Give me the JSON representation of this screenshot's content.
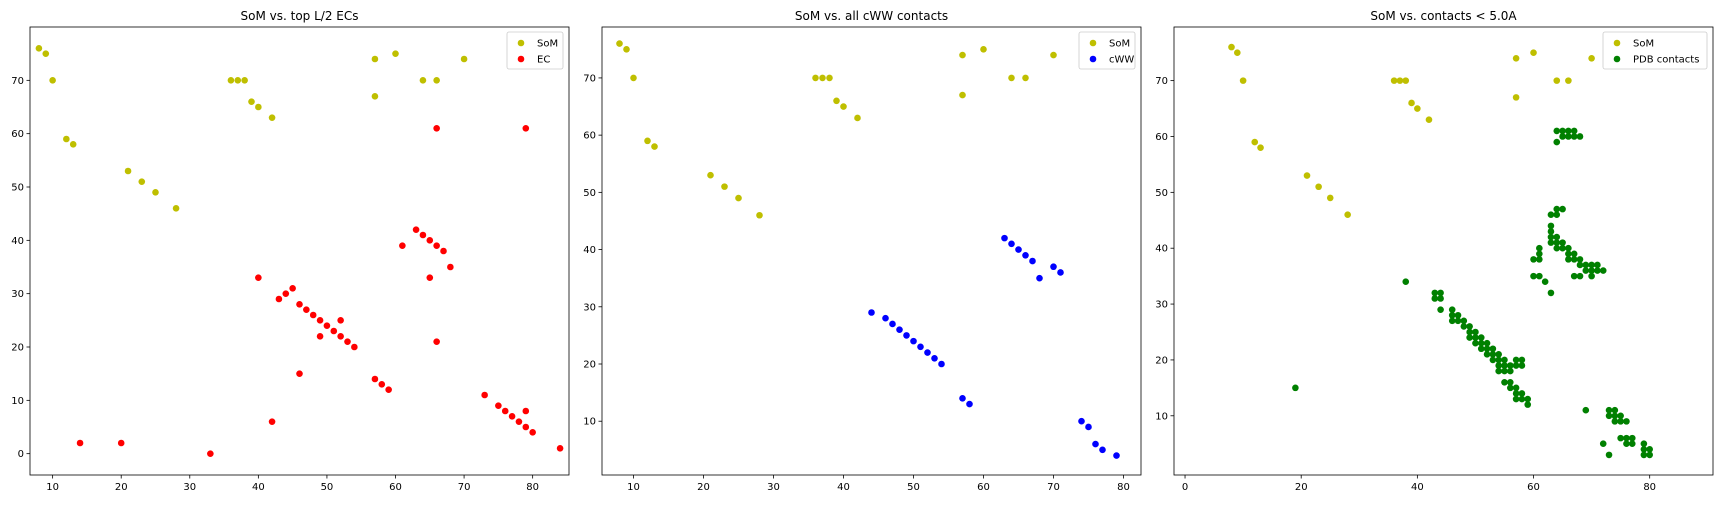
{
  "chart_data": [
    {
      "type": "scatter",
      "title": "SoM vs. top L/2 ECs",
      "xlabel": "",
      "ylabel": "",
      "xlim": [
        6.7,
        85.3
      ],
      "ylim": [
        -4,
        80
      ],
      "xticks": [
        10,
        20,
        30,
        40,
        50,
        60,
        70,
        80
      ],
      "yticks": [
        0,
        10,
        20,
        30,
        40,
        50,
        60,
        70
      ],
      "legend_position": "top-right",
      "grid": false,
      "series": [
        {
          "name": "SoM",
          "color": "#bfbf00",
          "points": [
            [
              8,
              76
            ],
            [
              9,
              75
            ],
            [
              10,
              70
            ],
            [
              12,
              59
            ],
            [
              13,
              58
            ],
            [
              21,
              53
            ],
            [
              23,
              51
            ],
            [
              25,
              49
            ],
            [
              28,
              46
            ],
            [
              36,
              70
            ],
            [
              37,
              70
            ],
            [
              38,
              70
            ],
            [
              39,
              66
            ],
            [
              40,
              65
            ],
            [
              42,
              63
            ],
            [
              57,
              74
            ],
            [
              57,
              67
            ],
            [
              60,
              75
            ],
            [
              64,
              70
            ],
            [
              66,
              70
            ],
            [
              70,
              74
            ]
          ]
        },
        {
          "name": "EC",
          "color": "#ff0000",
          "points": [
            [
              14,
              2
            ],
            [
              20,
              2
            ],
            [
              33,
              0
            ],
            [
              40,
              33
            ],
            [
              42,
              6
            ],
            [
              43,
              29
            ],
            [
              44,
              30
            ],
            [
              45,
              31
            ],
            [
              46,
              28
            ],
            [
              46,
              15
            ],
            [
              47,
              27
            ],
            [
              48,
              26
            ],
            [
              49,
              25
            ],
            [
              49,
              22
            ],
            [
              50,
              24
            ],
            [
              51,
              23
            ],
            [
              52,
              22
            ],
            [
              52,
              25
            ],
            [
              53,
              21
            ],
            [
              54,
              20
            ],
            [
              57,
              14
            ],
            [
              58,
              13
            ],
            [
              59,
              12
            ],
            [
              61,
              39
            ],
            [
              63,
              42
            ],
            [
              64,
              41
            ],
            [
              65,
              40
            ],
            [
              65,
              33
            ],
            [
              66,
              39
            ],
            [
              66,
              61
            ],
            [
              66,
              21
            ],
            [
              67,
              38
            ],
            [
              68,
              35
            ],
            [
              73,
              11
            ],
            [
              75,
              9
            ],
            [
              76,
              8
            ],
            [
              77,
              7
            ],
            [
              78,
              6
            ],
            [
              79,
              5
            ],
            [
              79,
              8
            ],
            [
              79,
              61
            ],
            [
              80,
              4
            ],
            [
              84,
              1
            ]
          ]
        }
      ]
    },
    {
      "type": "scatter",
      "title": "SoM vs. all cWW contacts",
      "xlabel": "",
      "ylabel": "",
      "xlim": [
        5.5,
        82.5
      ],
      "ylim": [
        0.6,
        78.9
      ],
      "xticks": [
        10,
        20,
        30,
        40,
        50,
        60,
        70,
        80
      ],
      "yticks": [
        10,
        20,
        30,
        40,
        50,
        60,
        70
      ],
      "legend_position": "top-right",
      "grid": false,
      "series": [
        {
          "name": "SoM",
          "color": "#bfbf00",
          "points": [
            [
              8,
              76
            ],
            [
              9,
              75
            ],
            [
              10,
              70
            ],
            [
              12,
              59
            ],
            [
              13,
              58
            ],
            [
              21,
              53
            ],
            [
              23,
              51
            ],
            [
              25,
              49
            ],
            [
              28,
              46
            ],
            [
              36,
              70
            ],
            [
              37,
              70
            ],
            [
              38,
              70
            ],
            [
              39,
              66
            ],
            [
              40,
              65
            ],
            [
              42,
              63
            ],
            [
              57,
              74
            ],
            [
              57,
              67
            ],
            [
              60,
              75
            ],
            [
              64,
              70
            ],
            [
              66,
              70
            ],
            [
              70,
              74
            ]
          ]
        },
        {
          "name": "cWW",
          "color": "#0000ff",
          "points": [
            [
              44,
              29
            ],
            [
              46,
              28
            ],
            [
              47,
              27
            ],
            [
              48,
              26
            ],
            [
              49,
              25
            ],
            [
              50,
              24
            ],
            [
              51,
              23
            ],
            [
              52,
              22
            ],
            [
              53,
              21
            ],
            [
              54,
              20
            ],
            [
              57,
              14
            ],
            [
              58,
              13
            ],
            [
              63,
              42
            ],
            [
              64,
              41
            ],
            [
              65,
              40
            ],
            [
              66,
              39
            ],
            [
              67,
              38
            ],
            [
              68,
              35
            ],
            [
              70,
              37
            ],
            [
              71,
              36
            ],
            [
              74,
              10
            ],
            [
              75,
              9
            ],
            [
              76,
              6
            ],
            [
              77,
              5
            ],
            [
              79,
              4
            ]
          ]
        }
      ]
    },
    {
      "type": "scatter",
      "title": "SoM vs. contacts < 5.0A",
      "xlabel": "",
      "ylabel": "",
      "xlim": [
        -1.9,
        90.9
      ],
      "ylim": [
        -0.6,
        79.6
      ],
      "xticks": [
        0,
        20,
        40,
        60,
        80
      ],
      "yticks": [
        10,
        20,
        30,
        40,
        50,
        60,
        70
      ],
      "legend_position": "top-right",
      "grid": false,
      "series": [
        {
          "name": "SoM",
          "color": "#bfbf00",
          "points": [
            [
              8,
              76
            ],
            [
              9,
              75
            ],
            [
              10,
              70
            ],
            [
              12,
              59
            ],
            [
              13,
              58
            ],
            [
              21,
              53
            ],
            [
              23,
              51
            ],
            [
              25,
              49
            ],
            [
              28,
              46
            ],
            [
              36,
              70
            ],
            [
              37,
              70
            ],
            [
              38,
              70
            ],
            [
              39,
              66
            ],
            [
              40,
              65
            ],
            [
              42,
              63
            ],
            [
              57,
              74
            ],
            [
              57,
              67
            ],
            [
              60,
              75
            ],
            [
              64,
              70
            ],
            [
              66,
              70
            ],
            [
              70,
              74
            ]
          ]
        },
        {
          "name": "PDB contacts",
          "color": "#008000",
          "points": [
            [
              19,
              15
            ],
            [
              38,
              34
            ],
            [
              43,
              32
            ],
            [
              43,
              31
            ],
            [
              44,
              32
            ],
            [
              44,
              31
            ],
            [
              44,
              29
            ],
            [
              46,
              29
            ],
            [
              46,
              28
            ],
            [
              46,
              27
            ],
            [
              47,
              28
            ],
            [
              47,
              27
            ],
            [
              48,
              27
            ],
            [
              48,
              26
            ],
            [
              49,
              26
            ],
            [
              49,
              25
            ],
            [
              49,
              24
            ],
            [
              50,
              25
            ],
            [
              50,
              24
            ],
            [
              50,
              23
            ],
            [
              51,
              24
            ],
            [
              51,
              23
            ],
            [
              51,
              22
            ],
            [
              52,
              23
            ],
            [
              52,
              22
            ],
            [
              52,
              21
            ],
            [
              53,
              22
            ],
            [
              53,
              21
            ],
            [
              53,
              20
            ],
            [
              54,
              21
            ],
            [
              54,
              20
            ],
            [
              54,
              19
            ],
            [
              54,
              18
            ],
            [
              55,
              20
            ],
            [
              55,
              19
            ],
            [
              55,
              18
            ],
            [
              55,
              16
            ],
            [
              56,
              19
            ],
            [
              56,
              18
            ],
            [
              56,
              16
            ],
            [
              56,
              15
            ],
            [
              57,
              20
            ],
            [
              57,
              19
            ],
            [
              57,
              15
            ],
            [
              57,
              14
            ],
            [
              57,
              13
            ],
            [
              58,
              20
            ],
            [
              58,
              19
            ],
            [
              58,
              14
            ],
            [
              58,
              13
            ],
            [
              59,
              13
            ],
            [
              59,
              12
            ],
            [
              60,
              38
            ],
            [
              60,
              35
            ],
            [
              61,
              40
            ],
            [
              61,
              39
            ],
            [
              61,
              38
            ],
            [
              61,
              35
            ],
            [
              62,
              34
            ],
            [
              63,
              46
            ],
            [
              63,
              44
            ],
            [
              63,
              43
            ],
            [
              63,
              42
            ],
            [
              63,
              41
            ],
            [
              63,
              32
            ],
            [
              64,
              47
            ],
            [
              64,
              46
            ],
            [
              64,
              42
            ],
            [
              64,
              41
            ],
            [
              64,
              40
            ],
            [
              64,
              59
            ],
            [
              64,
              61
            ],
            [
              65,
              47
            ],
            [
              65,
              41
            ],
            [
              65,
              40
            ],
            [
              65,
              60
            ],
            [
              65,
              61
            ],
            [
              66,
              40
            ],
            [
              66,
              39
            ],
            [
              66,
              38
            ],
            [
              66,
              61
            ],
            [
              66,
              60
            ],
            [
              67,
              39
            ],
            [
              67,
              38
            ],
            [
              67,
              35
            ],
            [
              67,
              61
            ],
            [
              67,
              60
            ],
            [
              68,
              38
            ],
            [
              68,
              37
            ],
            [
              68,
              35
            ],
            [
              68,
              60
            ],
            [
              69,
              37
            ],
            [
              69,
              36
            ],
            [
              69,
              11
            ],
            [
              70,
              37
            ],
            [
              70,
              36
            ],
            [
              70,
              35
            ],
            [
              71,
              37
            ],
            [
              71,
              36
            ],
            [
              72,
              36
            ],
            [
              72,
              5
            ],
            [
              73,
              11
            ],
            [
              73,
              10
            ],
            [
              73,
              3
            ],
            [
              74,
              11
            ],
            [
              74,
              10
            ],
            [
              74,
              9
            ],
            [
              75,
              10
            ],
            [
              75,
              9
            ],
            [
              75,
              6
            ],
            [
              76,
              9
            ],
            [
              76,
              6
            ],
            [
              76,
              5
            ],
            [
              77,
              6
            ],
            [
              77,
              5
            ],
            [
              79,
              5
            ],
            [
              79,
              4
            ],
            [
              79,
              3
            ],
            [
              80,
              4
            ],
            [
              80,
              3
            ]
          ]
        }
      ]
    }
  ]
}
